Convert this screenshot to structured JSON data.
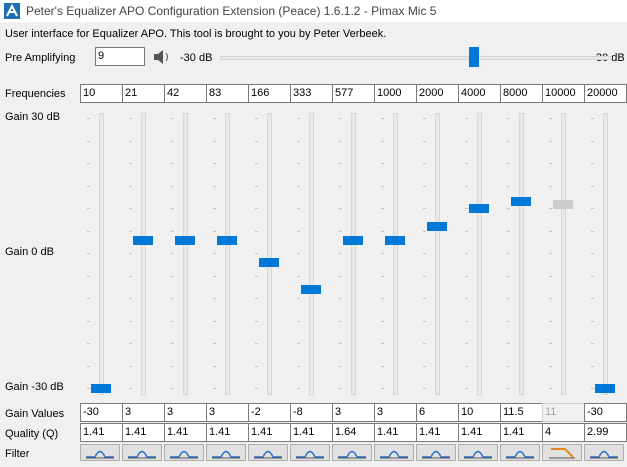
{
  "window_title": "Peter's Equalizer APO Configuration Extension (Peace) 1.6.1.2 - Pimax Mic 5",
  "intro": "User interface for Equalizer APO. This tool is brought to you by Peter Verbeek.",
  "pre_amp": {
    "label": "Pre Amplifying",
    "value": 9,
    "min": {
      "value": -30,
      "label": "-30 dB"
    },
    "max": {
      "value": 30,
      "label": "30 dB"
    }
  },
  "labels": {
    "frequencies": "Frequencies",
    "gain_values": "Gain Values",
    "quality": "Quality (Q)",
    "filter": "Filter"
  },
  "gain_axis": [
    {
      "value": 30,
      "label": "Gain 30 dB"
    },
    {
      "value": 0,
      "label": "Gain 0 dB"
    },
    {
      "value": -30,
      "label": "Gain -30 dB"
    }
  ],
  "bands": [
    {
      "frequency": 10,
      "gain": -30,
      "q": 1.41,
      "enabled": true
    },
    {
      "frequency": 21,
      "gain": 3,
      "q": 1.41,
      "enabled": true
    },
    {
      "frequency": 42,
      "gain": 3,
      "q": 1.41,
      "enabled": true
    },
    {
      "frequency": 83,
      "gain": 3,
      "q": 1.41,
      "enabled": true
    },
    {
      "frequency": 166,
      "gain": -2,
      "q": 1.41,
      "enabled": true
    },
    {
      "frequency": 333,
      "gain": -8,
      "q": 1.41,
      "enabled": true
    },
    {
      "frequency": 577,
      "gain": 3,
      "q": 1.64,
      "enabled": true
    },
    {
      "frequency": 1000,
      "gain": 3,
      "q": 1.41,
      "enabled": true
    },
    {
      "frequency": 2000,
      "gain": 6,
      "q": 1.41,
      "enabled": true
    },
    {
      "frequency": 4000,
      "gain": 10,
      "q": 1.41,
      "enabled": true
    },
    {
      "frequency": 8000,
      "gain": 11.5,
      "q": 1.41,
      "enabled": true
    },
    {
      "frequency": 10000,
      "gain": 11,
      "q": 4,
      "enabled": false
    },
    {
      "frequency": 20000,
      "gain": -30,
      "q": 2.99,
      "enabled": true
    }
  ]
}
